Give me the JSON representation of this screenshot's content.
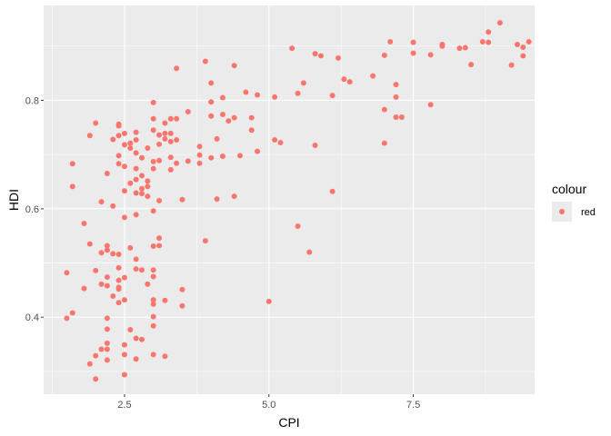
{
  "chart_data": {
    "type": "scatter",
    "xlabel": "CPI",
    "ylabel": "HDI",
    "xlim": [
      1.1,
      9.6
    ],
    "ylim": [
      0.258,
      0.975
    ],
    "x_ticks": [
      2.5,
      5.0,
      7.5
    ],
    "x_tick_labels": [
      "2.5",
      "5.0",
      "7.5"
    ],
    "y_ticks": [
      0.4,
      0.6,
      0.8
    ],
    "y_tick_labels": [
      "0.4",
      "0.6",
      "0.8"
    ],
    "grid": true,
    "background": "#ebebeb",
    "point_color": "#F8766D",
    "legend": {
      "title": "colour",
      "labels": [
        "red"
      ],
      "placement": "right"
    },
    "points": [
      [
        1.5,
        0.482
      ],
      [
        1.5,
        0.398
      ],
      [
        1.6,
        0.408
      ],
      [
        1.6,
        0.683
      ],
      [
        1.6,
        0.641
      ],
      [
        1.8,
        0.573
      ],
      [
        1.8,
        0.453
      ],
      [
        1.9,
        0.535
      ],
      [
        1.9,
        0.735
      ],
      [
        1.9,
        0.314
      ],
      [
        2.0,
        0.758
      ],
      [
        2.0,
        0.486
      ],
      [
        2.0,
        0.329
      ],
      [
        2.0,
        0.286
      ],
      [
        2.1,
        0.613
      ],
      [
        2.1,
        0.519
      ],
      [
        2.1,
        0.461
      ],
      [
        2.1,
        0.341
      ],
      [
        2.2,
        0.665
      ],
      [
        2.2,
        0.532
      ],
      [
        2.2,
        0.524
      ],
      [
        2.2,
        0.474
      ],
      [
        2.2,
        0.458
      ],
      [
        2.2,
        0.398
      ],
      [
        2.2,
        0.378
      ],
      [
        2.2,
        0.352
      ],
      [
        2.2,
        0.341
      ],
      [
        2.2,
        0.321
      ],
      [
        2.3,
        0.728
      ],
      [
        2.3,
        0.605
      ],
      [
        2.3,
        0.517
      ],
      [
        2.3,
        0.439
      ],
      [
        2.4,
        0.756
      ],
      [
        2.4,
        0.753
      ],
      [
        2.4,
        0.735
      ],
      [
        2.4,
        0.698
      ],
      [
        2.4,
        0.683
      ],
      [
        2.4,
        0.516
      ],
      [
        2.4,
        0.491
      ],
      [
        2.4,
        0.468
      ],
      [
        2.4,
        0.455
      ],
      [
        2.4,
        0.452
      ],
      [
        2.4,
        0.427
      ],
      [
        2.5,
        0.739
      ],
      [
        2.5,
        0.718
      ],
      [
        2.5,
        0.678
      ],
      [
        2.5,
        0.633
      ],
      [
        2.5,
        0.584
      ],
      [
        2.5,
        0.473
      ],
      [
        2.5,
        0.432
      ],
      [
        2.5,
        0.349
      ],
      [
        2.5,
        0.331
      ],
      [
        2.5,
        0.294
      ],
      [
        2.6,
        0.721
      ],
      [
        2.6,
        0.712
      ],
      [
        2.6,
        0.647
      ],
      [
        2.6,
        0.528
      ],
      [
        2.6,
        0.377
      ],
      [
        2.7,
        0.741
      ],
      [
        2.7,
        0.727
      ],
      [
        2.7,
        0.703
      ],
      [
        2.7,
        0.674
      ],
      [
        2.7,
        0.654
      ],
      [
        2.7,
        0.629
      ],
      [
        2.7,
        0.589
      ],
      [
        2.7,
        0.507
      ],
      [
        2.7,
        0.489
      ],
      [
        2.7,
        0.361
      ],
      [
        2.7,
        0.323
      ],
      [
        2.8,
        0.694
      ],
      [
        2.8,
        0.661
      ],
      [
        2.8,
        0.637
      ],
      [
        2.8,
        0.628
      ],
      [
        2.8,
        0.487
      ],
      [
        2.8,
        0.359
      ],
      [
        2.9,
        0.712
      ],
      [
        2.9,
        0.651
      ],
      [
        2.9,
        0.641
      ],
      [
        2.9,
        0.623
      ],
      [
        2.9,
        0.461
      ],
      [
        3.0,
        0.796
      ],
      [
        3.0,
        0.766
      ],
      [
        3.0,
        0.745
      ],
      [
        3.0,
        0.687
      ],
      [
        3.0,
        0.674
      ],
      [
        3.0,
        0.596
      ],
      [
        3.0,
        0.531
      ],
      [
        3.0,
        0.487
      ],
      [
        3.0,
        0.475
      ],
      [
        3.0,
        0.432
      ],
      [
        3.0,
        0.424
      ],
      [
        3.0,
        0.401
      ],
      [
        3.0,
        0.384
      ],
      [
        3.0,
        0.331
      ],
      [
        3.1,
        0.736
      ],
      [
        3.1,
        0.719
      ],
      [
        3.1,
        0.689
      ],
      [
        3.1,
        0.615
      ],
      [
        3.1,
        0.546
      ],
      [
        3.1,
        0.532
      ],
      [
        3.2,
        0.758
      ],
      [
        3.2,
        0.739
      ],
      [
        3.2,
        0.729
      ],
      [
        3.2,
        0.431
      ],
      [
        3.2,
        0.328
      ],
      [
        3.3,
        0.766
      ],
      [
        3.3,
        0.739
      ],
      [
        3.3,
        0.724
      ],
      [
        3.3,
        0.695
      ],
      [
        3.3,
        0.672
      ],
      [
        3.4,
        0.859
      ],
      [
        3.4,
        0.766
      ],
      [
        3.4,
        0.727
      ],
      [
        3.4,
        0.684
      ],
      [
        3.5,
        0.617
      ],
      [
        3.5,
        0.451
      ],
      [
        3.5,
        0.421
      ],
      [
        3.6,
        0.779
      ],
      [
        3.6,
        0.688
      ],
      [
        3.8,
        0.715
      ],
      [
        3.8,
        0.699
      ],
      [
        3.8,
        0.684
      ],
      [
        3.9,
        0.872
      ],
      [
        3.9,
        0.541
      ],
      [
        4.0,
        0.832
      ],
      [
        4.0,
        0.797
      ],
      [
        4.0,
        0.771
      ],
      [
        4.0,
        0.694
      ],
      [
        4.1,
        0.729
      ],
      [
        4.1,
        0.618
      ],
      [
        4.2,
        0.805
      ],
      [
        4.2,
        0.774
      ],
      [
        4.2,
        0.697
      ],
      [
        4.3,
        0.762
      ],
      [
        4.4,
        0.864
      ],
      [
        4.4,
        0.768
      ],
      [
        4.4,
        0.623
      ],
      [
        4.5,
        0.698
      ],
      [
        4.6,
        0.815
      ],
      [
        4.7,
        0.768
      ],
      [
        4.7,
        0.745
      ],
      [
        4.8,
        0.81
      ],
      [
        4.8,
        0.706
      ],
      [
        5.0,
        0.429
      ],
      [
        5.1,
        0.806
      ],
      [
        5.1,
        0.727
      ],
      [
        5.2,
        0.722
      ],
      [
        5.4,
        0.896
      ],
      [
        5.5,
        0.813
      ],
      [
        5.5,
        0.568
      ],
      [
        5.6,
        0.832
      ],
      [
        5.7,
        0.52
      ],
      [
        5.8,
        0.886
      ],
      [
        5.8,
        0.717
      ],
      [
        5.9,
        0.882
      ],
      [
        6.1,
        0.809
      ],
      [
        6.1,
        0.632
      ],
      [
        6.2,
        0.878
      ],
      [
        6.3,
        0.839
      ],
      [
        6.4,
        0.834
      ],
      [
        6.8,
        0.845
      ],
      [
        7.0,
        0.883
      ],
      [
        7.0,
        0.783
      ],
      [
        7.0,
        0.721
      ],
      [
        7.1,
        0.908
      ],
      [
        7.2,
        0.829
      ],
      [
        7.2,
        0.806
      ],
      [
        7.2,
        0.769
      ],
      [
        7.3,
        0.769
      ],
      [
        7.5,
        0.907
      ],
      [
        7.5,
        0.887
      ],
      [
        7.8,
        0.884
      ],
      [
        7.8,
        0.792
      ],
      [
        8.0,
        0.903
      ],
      [
        8.0,
        0.9
      ],
      [
        8.3,
        0.896
      ],
      [
        8.4,
        0.897
      ],
      [
        8.5,
        0.866
      ],
      [
        8.7,
        0.908
      ],
      [
        8.8,
        0.926
      ],
      [
        8.8,
        0.907
      ],
      [
        9.0,
        0.943
      ],
      [
        9.2,
        0.865
      ],
      [
        9.3,
        0.903
      ],
      [
        9.4,
        0.898
      ],
      [
        9.4,
        0.882
      ],
      [
        9.5,
        0.908
      ]
    ]
  }
}
